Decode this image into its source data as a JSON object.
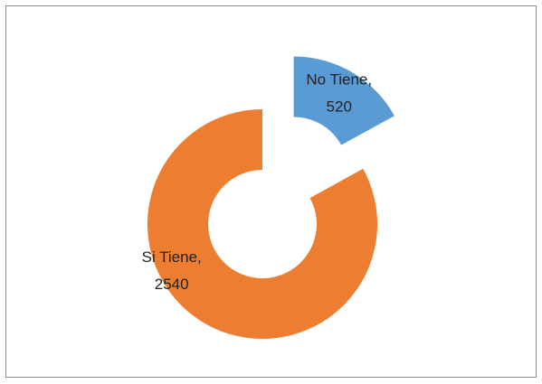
{
  "chart_data": {
    "type": "donut",
    "values": [
      520,
      2540
    ],
    "value_labels": [
      "No Tiene, 520",
      "Si Tiene, 2540"
    ],
    "colors": [
      "#5b9bd5",
      "#ed7d31"
    ],
    "exploded": [
      true,
      false
    ]
  }
}
